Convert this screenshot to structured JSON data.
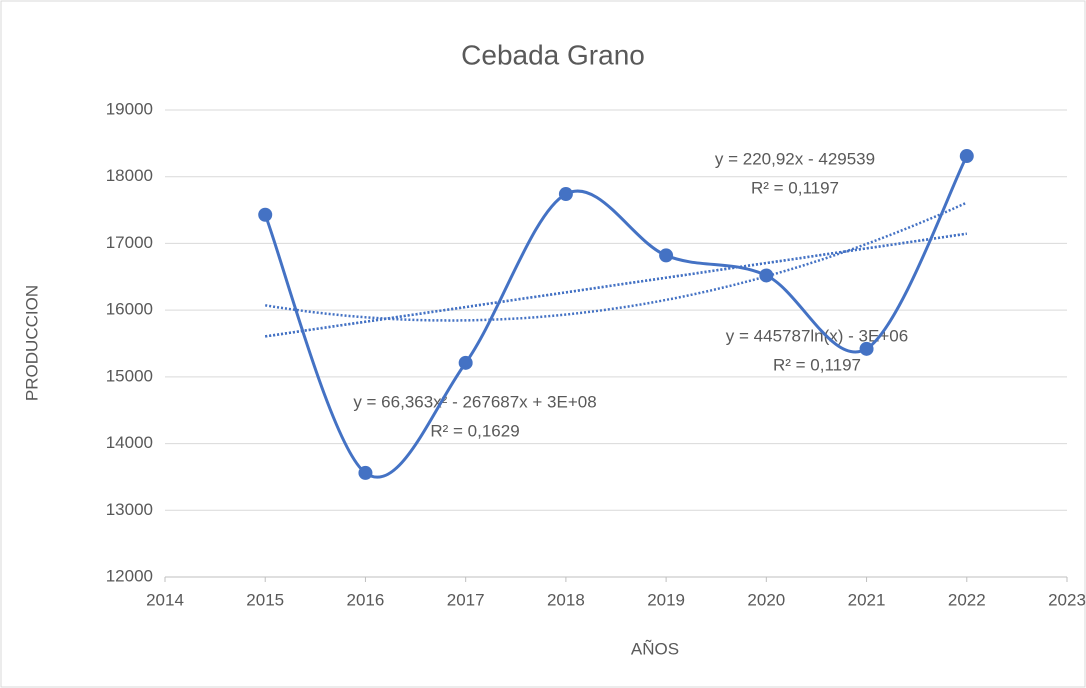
{
  "chart_data": {
    "type": "scatter_smooth",
    "title": "Cebada Grano",
    "x_label": "AÑOS",
    "y_label": "PRODUCCION",
    "series": [
      {
        "name": "Producción",
        "color": "#4472c4",
        "x": [
          2015,
          2016,
          2017,
          2018,
          2019,
          2020,
          2021,
          2022
        ],
        "values": [
          17430,
          13560,
          15210,
          17740,
          16820,
          16520,
          15420,
          18310
        ]
      }
    ],
    "trendlines": [
      {
        "type": "linear",
        "equation": "y = 220,92x - 429539",
        "r2": "R² = 0,1197"
      },
      {
        "type": "log",
        "equation": "y = 445787ln(x) - 3E+06",
        "r2": "R² = 0,1197"
      },
      {
        "type": "poly2",
        "equation": "y = 66,363x² - 267687x + 3E+08",
        "r2": "R² = 0,1629"
      }
    ],
    "xlim": [
      2014,
      2023
    ],
    "xticks": [
      2014,
      2015,
      2016,
      2017,
      2018,
      2019,
      2020,
      2021,
      2022,
      2023
    ],
    "ylim": [
      12000,
      19000
    ],
    "yticks": [
      12000,
      13000,
      14000,
      15000,
      16000,
      17000,
      18000,
      19000
    ],
    "grid": true
  }
}
